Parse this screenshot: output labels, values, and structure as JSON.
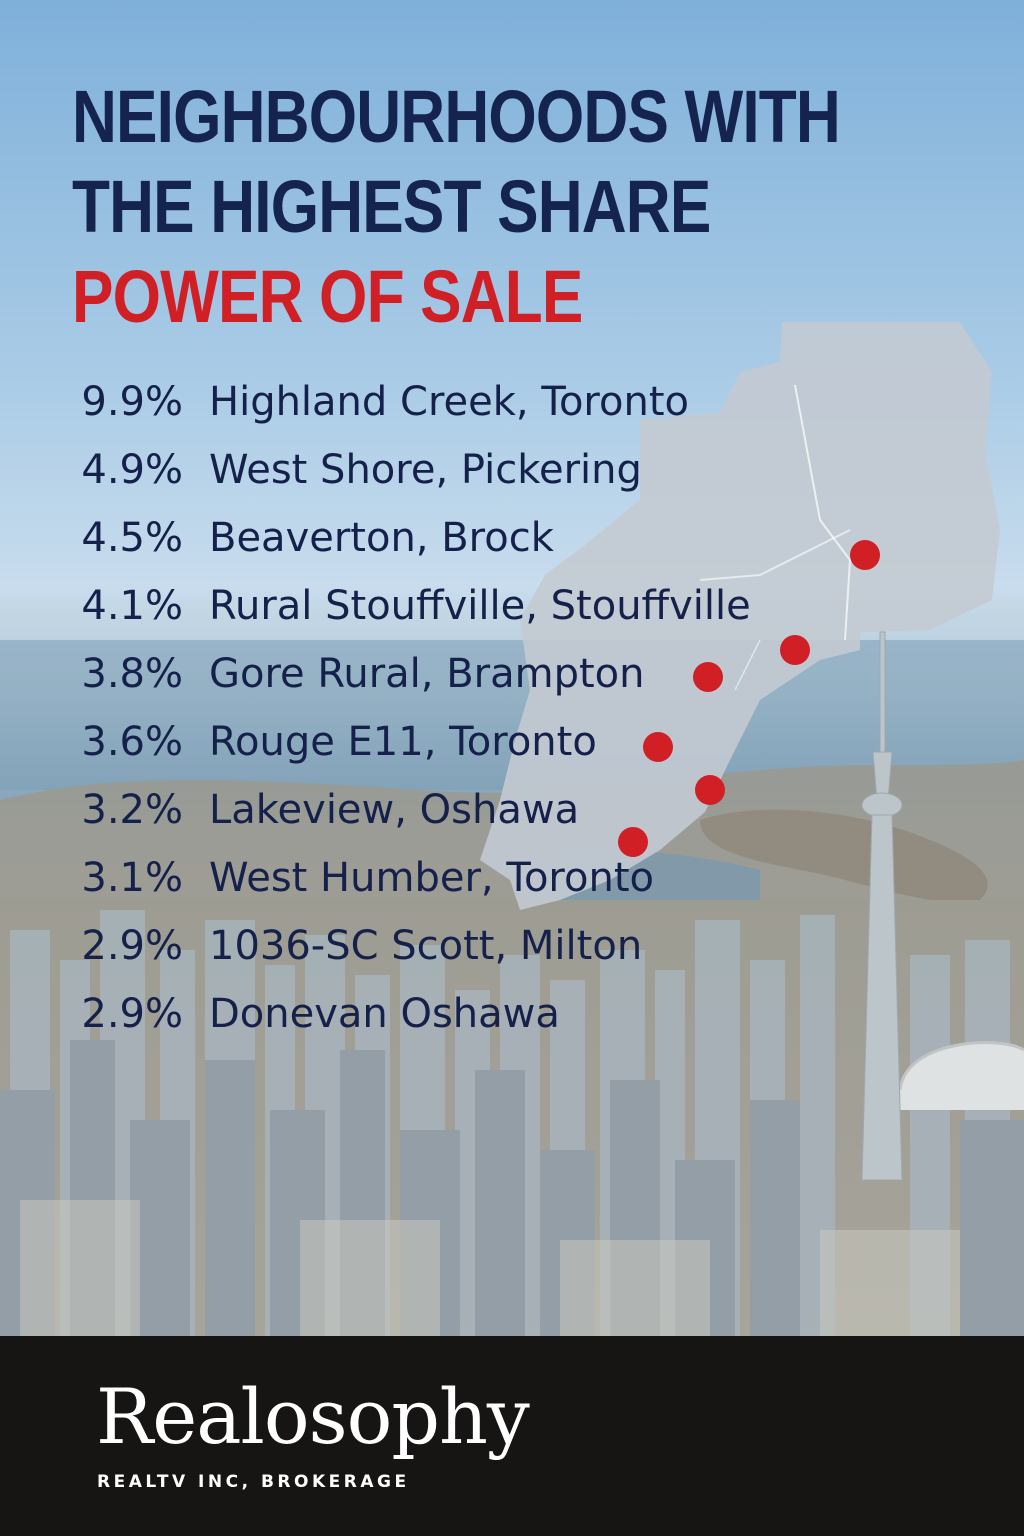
{
  "headline": {
    "line1": "NEIGHBOURHOODS WITH",
    "line2": "THE HIGHEST SHARE",
    "line3": "POWER OF SALE"
  },
  "neighbourhoods": [
    {
      "percent": "9.9%",
      "name": "Highland Creek, Toronto"
    },
    {
      "percent": "4.9%",
      "name": "West Shore, Pickering"
    },
    {
      "percent": "4.5%",
      "name": "Beaverton, Brock"
    },
    {
      "percent": "4.1%",
      "name": "Rural Stouffville, Stouffville"
    },
    {
      "percent": "3.8%",
      "name": "Gore Rural, Brampton"
    },
    {
      "percent": "3.6%",
      "name": "Rouge E11, Toronto"
    },
    {
      "percent": "3.2%",
      "name": "Lakeview, Oshawa"
    },
    {
      "percent": "3.1%",
      "name": "West Humber, Toronto"
    },
    {
      "percent": "2.9%",
      "name": "1036-SC Scott, Milton"
    },
    {
      "percent": "2.9%",
      "name": "Donevan  Oshawa"
    }
  ],
  "brand": {
    "name": "Realosophy",
    "tagline": "REALTV INC, BROKERAGE"
  },
  "colors": {
    "headline": "#14244f",
    "accent": "#d11f26",
    "footer": "#171514",
    "map_marker": "#d11f26"
  }
}
